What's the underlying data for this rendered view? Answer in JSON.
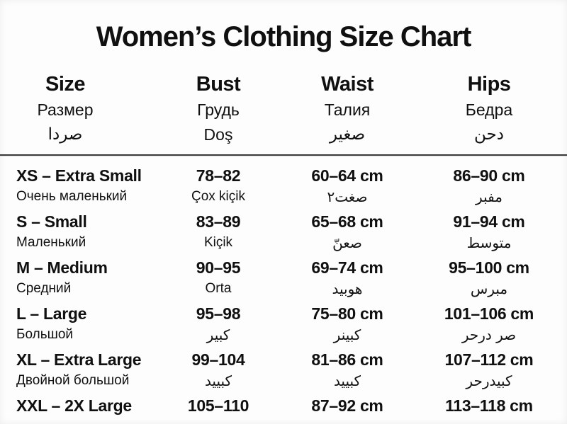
{
  "title": "Women’s Clothing Size Chart",
  "columns": [
    {
      "en": "Size",
      "ru": "Размер",
      "l3": "صردا"
    },
    {
      "en": "Bust",
      "ru": "Грудь",
      "l3": "Doş"
    },
    {
      "en": "Waist",
      "ru": "Талия",
      "l3": "صغير"
    },
    {
      "en": "Hips",
      "ru": "Бедра",
      "l3": "دحن"
    }
  ],
  "rows": [
    {
      "size": "XS – Extra Small",
      "size_sub": "Очень маленький",
      "bust": "78–82",
      "bust_sub": "Çox kiçik",
      "waist": "60–64 cm",
      "waist_sub": "صغت٢",
      "hips": "86–90 cm",
      "hips_sub": "مفبر"
    },
    {
      "size": "S – Small",
      "size_sub": "Маленький",
      "bust": "83–89",
      "bust_sub": "Kiçik",
      "waist": "65–68 cm",
      "waist_sub": "صعنّ",
      "hips": "91–94 cm",
      "hips_sub": "متوسط"
    },
    {
      "size": "M – Medium",
      "size_sub": "Средний",
      "bust": "90–95",
      "bust_sub": "Orta",
      "waist": "69–74 cm",
      "waist_sub": "هوبيد",
      "hips": "95–100 cm",
      "hips_sub": "مبرس"
    },
    {
      "size": "L – Large",
      "size_sub": "Большой",
      "bust": "95–98",
      "bust_sub": "كبير",
      "waist": "75–80 cm",
      "waist_sub": "كبينر",
      "hips": "101–106 cm",
      "hips_sub": "صر درحر"
    },
    {
      "size": "XL – Extra Large",
      "size_sub": "Двойной большой",
      "bust": "99–104",
      "bust_sub": "كبييد",
      "waist": "81–86 cm",
      "waist_sub": "كبييد",
      "hips": "107–112 cm",
      "hips_sub": "كبيدرحر"
    },
    {
      "size": "XXL – 2X Large",
      "size_sub": "",
      "bust": "105–110",
      "bust_sub": "",
      "waist": "87–92 cm",
      "waist_sub": "",
      "hips": "113–118 cm",
      "hips_sub": ""
    }
  ]
}
